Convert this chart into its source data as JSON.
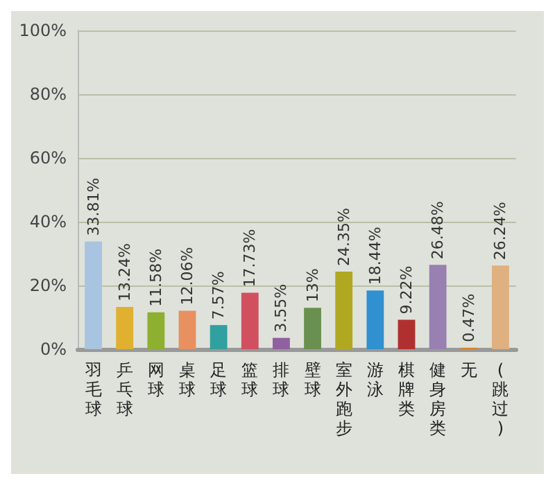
{
  "chart_data": {
    "type": "bar",
    "categories": [
      "羽毛球",
      "乒乓球",
      "网球",
      "桌球",
      "足球",
      "篮球",
      "排球",
      "壁球",
      "室外跑步",
      "游泳",
      "棋牌类",
      "健身房类",
      "无",
      "(跳过)"
    ],
    "values": [
      33.81,
      13.24,
      11.58,
      12.06,
      7.57,
      17.73,
      3.55,
      13,
      24.35,
      18.44,
      9.22,
      26.48,
      0.47,
      26.24
    ],
    "value_labels": [
      "33.81%",
      "13.24%",
      "11.58%",
      "12.06%",
      "7.57%",
      "17.73%",
      "3.55%",
      "13%",
      "24.35%",
      "18.44%",
      "9.22%",
      "26.48%",
      "0.47%",
      "26.24%"
    ],
    "colors": [
      "#a8c4e0",
      "#e0b030",
      "#8db030",
      "#e89060",
      "#30a0a0",
      "#d05060",
      "#9060a0",
      "#6a9050",
      "#b0a820",
      "#3090d0",
      "#b03030",
      "#9880b0",
      "#e08020",
      "#e0b080"
    ],
    "ylim": [
      0,
      100
    ],
    "yticks": [
      {
        "value": 0,
        "label": "0%"
      },
      {
        "value": 20,
        "label": "20%"
      },
      {
        "value": 40,
        "label": "40%"
      },
      {
        "value": 60,
        "label": "60%"
      },
      {
        "value": 80,
        "label": "80%"
      },
      {
        "value": 100,
        "label": "100%"
      }
    ],
    "grid": "y"
  }
}
